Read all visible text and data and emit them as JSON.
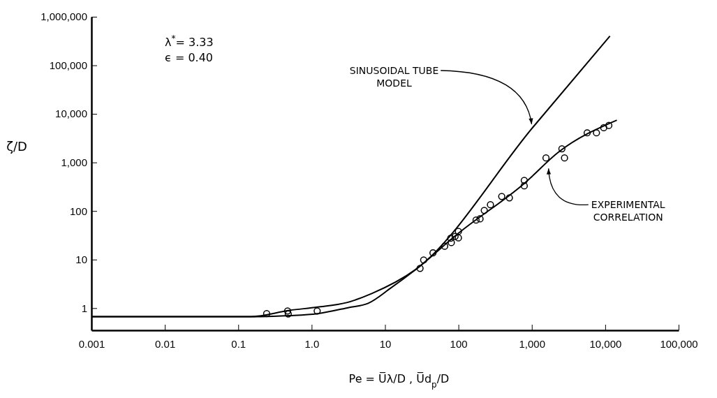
{
  "chart_data": {
    "type": "scatter",
    "xlabel": "Pe = U̅λ/D , U̅d$_{p}$/D",
    "ylabel": "ζ/D",
    "log": "xy",
    "marker": "circle",
    "grid": false,
    "xlim": [
      0.001,
      100000
    ],
    "ylim": [
      0.35,
      1000000
    ],
    "xticks": [
      0.001,
      0.01,
      0.1,
      {
        "value": 1,
        "label": "1.0"
      },
      10,
      100,
      {
        "value": 1000,
        "label": "1,000"
      },
      {
        "value": 10000,
        "label": "10,000"
      },
      {
        "value": 100000,
        "label": "100,000"
      }
    ],
    "yticks": [
      1,
      10,
      100,
      {
        "value": 1000,
        "label": "1,000"
      },
      {
        "value": 10000,
        "label": "10,000"
      },
      {
        "value": 100000,
        "label": "100,000"
      },
      {
        "value": 1000000,
        "label": "1,000,000"
      }
    ],
    "series": [
      {
        "type": "line",
        "marker": "none",
        "color": "#000000",
        "x": [
          0.001,
          0.15,
          0.5,
          1.2,
          3,
          6.6,
          26,
          1040,
          11600
        ],
        "values": [
          0.67,
          0.67,
          0.9,
          1.05,
          1.3,
          2.0,
          6.2,
          5350,
          400000
        ]
      },
      {
        "type": "line",
        "marker": "none",
        "color": "#000000",
        "x": [
          0.001,
          0.2,
          0.5,
          1.2,
          3.2,
          5.9,
          12,
          26,
          100,
          800,
          2300,
          14400
        ],
        "values": [
          0.67,
          0.67,
          0.7,
          0.77,
          1.03,
          1.26,
          2.6,
          6.2,
          34.8,
          376,
          1620,
          7400
        ]
      },
      {
        "color": "#000000",
        "x": [
          0.244,
          0.47,
          0.48,
          1.19,
          30,
          33.6,
          45,
          65,
          78.5,
          80,
          90,
          100,
          100,
          174,
          197,
          225,
          273,
          389,
          495,
          789,
          789,
          1560,
          2570,
          2790,
          5680,
          7600,
          9550,
          11200
        ],
        "values": [
          0.77,
          0.875,
          0.76,
          0.875,
          6.6,
          9.8,
          13.7,
          18.8,
          27.5,
          22.4,
          30,
          38,
          28,
          65,
          69,
          103,
          135,
          200,
          187,
          428,
          330,
          1240,
          1910,
          1240,
          4070,
          4070,
          5190,
          5770
        ]
      }
    ],
    "annotations": [
      "λ$^{*}$= 3.33",
      "ϵ = 0.40",
      {
        "text": "SINUSOIDAL TUBE MODEL",
        "x": 1040,
        "y": 5350
      },
      {
        "text": "EXPERIMENTAL CORRELATION",
        "x": 1690,
        "y": 890
      }
    ]
  }
}
